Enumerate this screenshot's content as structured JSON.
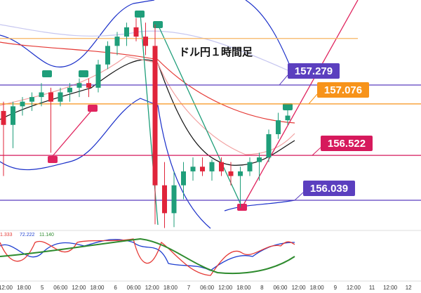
{
  "chart_data": {
    "type": "candlestick",
    "title": "ドル円１時間足",
    "ylim": [
      155.714,
      158.194
    ],
    "up_color": "#1f9e7a",
    "down_color": "#e0243a",
    "candles": {
      "open": [
        157.0,
        156.85,
        157.05,
        157.1,
        157.15,
        157.2,
        157.1,
        157.2,
        157.25,
        157.3,
        157.25,
        157.5,
        157.7,
        157.8,
        157.9,
        157.8,
        157.7,
        156.2,
        155.9,
        156.2,
        156.35,
        156.4,
        156.35,
        156.45,
        156.35,
        156.3,
        156.35,
        156.45,
        156.5,
        156.75,
        156.9
      ],
      "high": [
        157.1,
        157.1,
        157.15,
        157.2,
        157.3,
        157.25,
        157.25,
        157.3,
        157.35,
        157.35,
        157.55,
        157.75,
        157.85,
        157.95,
        158.0,
        157.95,
        157.93,
        156.45,
        156.35,
        156.45,
        156.5,
        156.5,
        156.48,
        156.5,
        156.45,
        156.4,
        156.5,
        156.55,
        156.8,
        156.98,
        157.02
      ],
      "low": [
        156.3,
        156.6,
        156.95,
        157.0,
        157.05,
        156.55,
        157.05,
        157.1,
        157.15,
        157.15,
        157.2,
        157.45,
        157.6,
        157.7,
        157.75,
        157.6,
        155.78,
        155.74,
        155.75,
        156.05,
        156.25,
        156.3,
        156.25,
        156.3,
        156.2,
        155.96,
        156.3,
        156.25,
        156.45,
        156.7,
        156.85
      ],
      "close": [
        156.85,
        157.05,
        157.1,
        157.15,
        157.2,
        157.1,
        157.2,
        157.25,
        157.3,
        157.25,
        157.5,
        157.7,
        157.8,
        157.9,
        157.8,
        157.7,
        156.2,
        155.9,
        156.2,
        156.35,
        156.4,
        156.35,
        156.45,
        156.35,
        156.3,
        156.35,
        156.45,
        156.5,
        156.75,
        156.9,
        156.95
      ]
    },
    "levels": [
      {
        "value": 157.279,
        "color": "#5b3fbf"
      },
      {
        "value": 157.076,
        "color": "#f7931a"
      },
      {
        "value": 156.522,
        "color": "#d6195c"
      },
      {
        "value": 156.039,
        "color": "#5b3fbf"
      },
      {
        "value": 157.78,
        "color": "#f7b560"
      }
    ],
    "x_labels": [
      "12:00",
      "18:00",
      "5",
      "06:00",
      "12:00",
      "18:00",
      "6",
      "06:00",
      "12:00",
      "18:00",
      "7",
      "06:00",
      "12:00",
      "18:00",
      "8",
      "06:00",
      "12:00",
      "18:00",
      "9",
      "12:00",
      "11",
      "12:00",
      "12"
    ],
    "oscillator_labels": [
      {
        "text": "1.333",
        "color": "#e53935"
      },
      {
        "text": "72.222",
        "color": "#1e3fd0"
      },
      {
        "text": "11.140",
        "color": "#2e8b2e"
      }
    ]
  }
}
